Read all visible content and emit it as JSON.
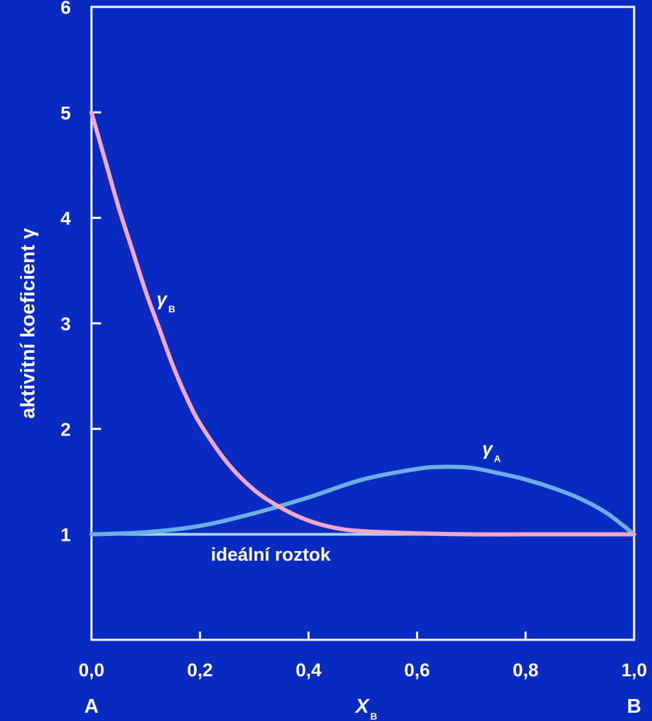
{
  "chart_data": {
    "type": "line",
    "title": "",
    "xlabel": {
      "main": "X",
      "sub": "B"
    },
    "ylabel": "aktivitní koeficient γ",
    "xlim": [
      0,
      1
    ],
    "ylim": [
      0,
      6
    ],
    "x_ticks": [
      "0,0",
      "0,2",
      "0,4",
      "0,6",
      "0,8",
      "1,0"
    ],
    "y_ticks": [
      "1",
      "2",
      "3",
      "4",
      "5",
      "6"
    ],
    "x_end_labels": {
      "left": "A",
      "right": "B"
    },
    "grid": false,
    "colors": {
      "background": "#0a2bc2",
      "axes": "#ffffff",
      "gamma_b": "#f0a8c8",
      "gamma_a": "#6ab0e4",
      "ideal": "#a8d4f0"
    },
    "series": [
      {
        "label": {
          "main": "γ",
          "sub": "B"
        },
        "label_x": 0.12,
        "label_y": 3.17,
        "x": [
          0.0,
          0.025,
          0.05,
          0.075,
          0.1,
          0.125,
          0.15,
          0.175,
          0.2,
          0.25,
          0.3,
          0.35,
          0.4,
          0.45,
          0.5,
          0.6,
          0.7,
          0.8,
          0.9,
          1.0
        ],
        "y": [
          5.0,
          4.55,
          4.1,
          3.7,
          3.3,
          2.95,
          2.6,
          2.3,
          2.05,
          1.68,
          1.42,
          1.25,
          1.13,
          1.06,
          1.03,
          1.01,
          1.0,
          1.0,
          1.0,
          1.0
        ]
      },
      {
        "label": {
          "main": "γ",
          "sub": "A"
        },
        "label_x": 0.72,
        "label_y": 1.75,
        "x": [
          0.0,
          0.1,
          0.2,
          0.3,
          0.4,
          0.5,
          0.6,
          0.65,
          0.7,
          0.75,
          0.8,
          0.85,
          0.9,
          0.95,
          1.0
        ],
        "y": [
          1.0,
          1.02,
          1.08,
          1.2,
          1.35,
          1.52,
          1.62,
          1.64,
          1.63,
          1.58,
          1.52,
          1.44,
          1.34,
          1.2,
          1.0
        ]
      },
      {
        "label": {
          "main": "ideální roztok"
        },
        "label_x": 0.22,
        "label_y": 0.75,
        "x": [
          0.0,
          1.0
        ],
        "y": [
          1.0,
          1.0
        ]
      }
    ]
  }
}
